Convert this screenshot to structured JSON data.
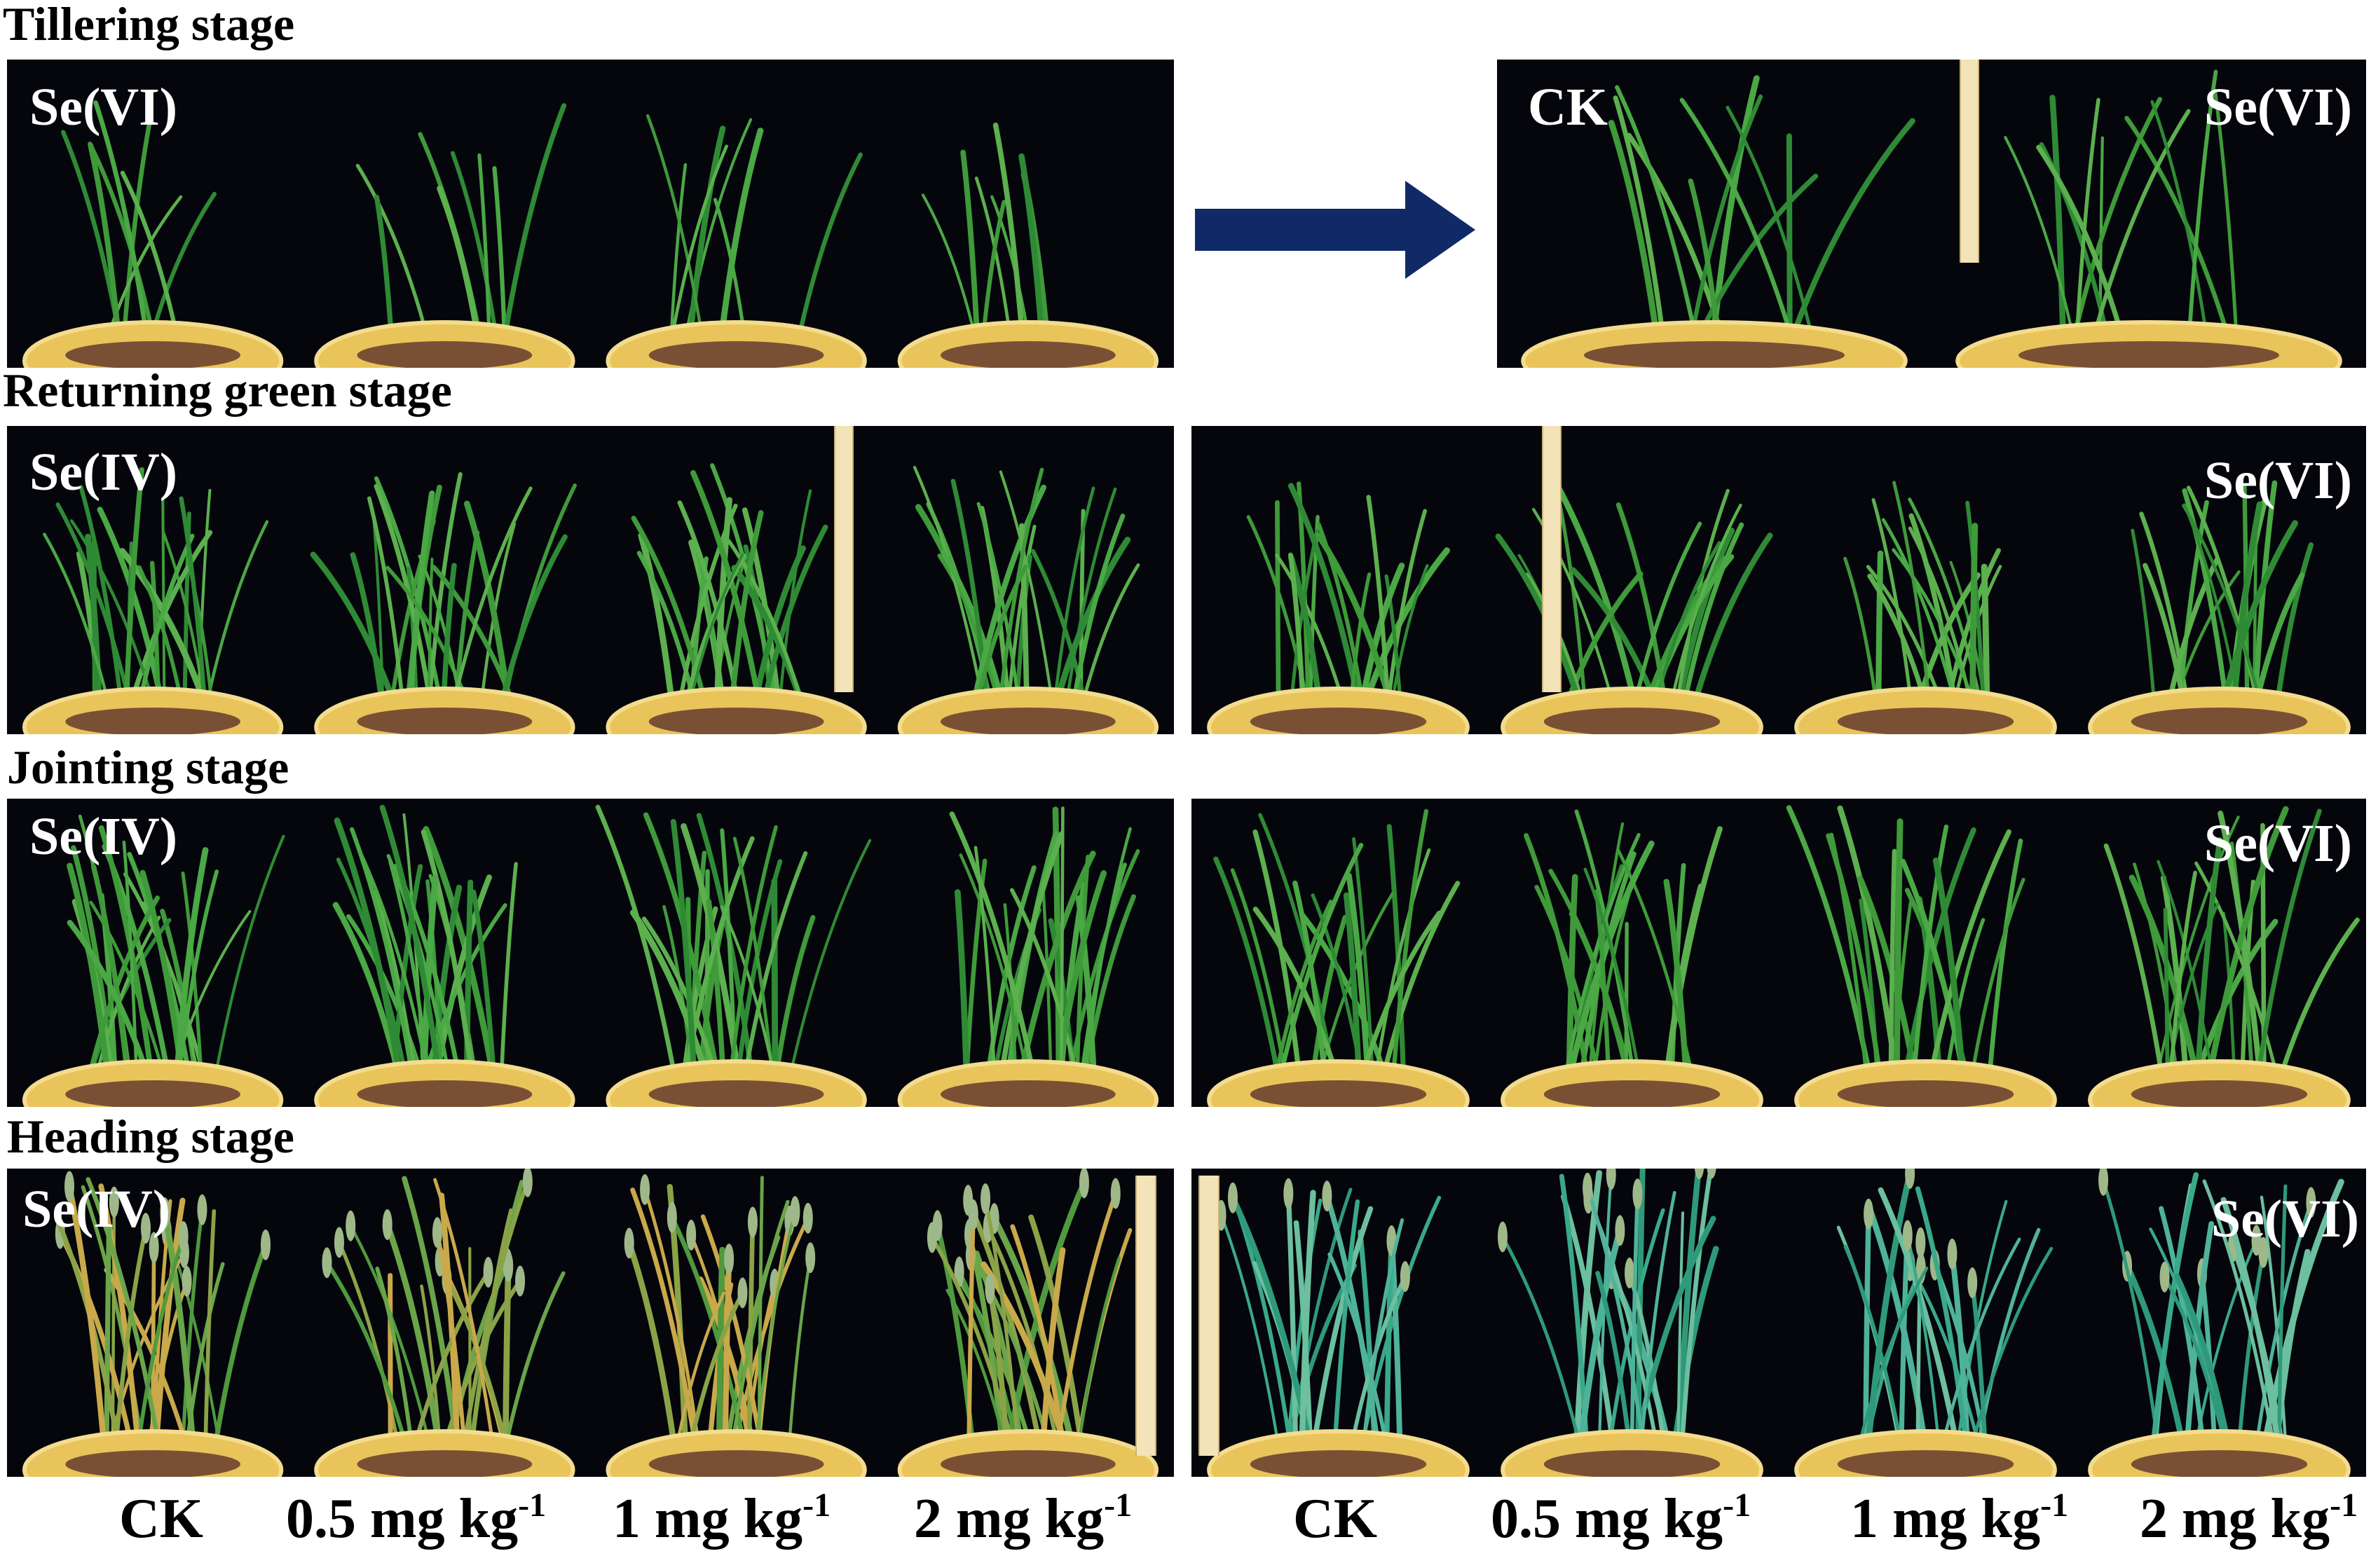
{
  "stages": [
    {
      "title": "Tillering stage",
      "left_label": "Se(VI)",
      "right_left_label": "CK",
      "right_label": "Se(VI)"
    },
    {
      "title": "Returning green stage",
      "left_label": "Se(IV)",
      "right_label": "Se(VI)"
    },
    {
      "title": "Jointing stage",
      "left_label": "Se(IV)",
      "right_label": "Se(VI)"
    },
    {
      "title": "Heading stage",
      "left_label": "Se(IV)",
      "right_label": "Se(VI)"
    }
  ],
  "treatments": {
    "left": [
      {
        "base": "CK",
        "sup": ""
      },
      {
        "base": "0.5 mg kg",
        "sup": "-1"
      },
      {
        "base": "1 mg kg",
        "sup": "-1"
      },
      {
        "base": "2 mg kg",
        "sup": "-1"
      }
    ],
    "right": [
      {
        "base": "CK",
        "sup": ""
      },
      {
        "base": "0.5 mg kg",
        "sup": "-1"
      },
      {
        "base": "1 mg kg",
        "sup": "-1"
      },
      {
        "base": "2 mg kg",
        "sup": "-1"
      }
    ]
  },
  "colors": {
    "background_panel": "#05060c",
    "arrow": "#0f2a66",
    "pot_yellow": "#e9c45a",
    "leaf_green": "#3f9a3a"
  }
}
